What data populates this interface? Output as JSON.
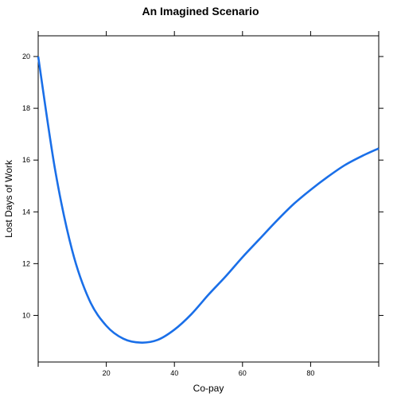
{
  "chart_data": {
    "type": "line",
    "title": "An Imagined Scenario",
    "xlabel": "Co-pay",
    "ylabel": "Lost Days of Work",
    "xlim": [
      0,
      100
    ],
    "ylim": [
      8.2,
      20.8
    ],
    "x_ticks": [
      20,
      40,
      60,
      80
    ],
    "y_ticks": [
      10,
      12,
      14,
      16,
      18,
      20
    ],
    "grid": false,
    "series": [
      {
        "color": "#1a6fe8",
        "x": [
          0,
          5,
          10,
          15,
          20,
          25,
          30,
          35,
          40,
          45,
          50,
          55,
          60,
          65,
          70,
          75,
          80,
          85,
          90,
          95,
          100
        ],
        "y": [
          20.0,
          15.6,
          12.5,
          10.6,
          9.6,
          9.1,
          8.95,
          9.05,
          9.45,
          10.05,
          10.8,
          11.5,
          12.25,
          12.95,
          13.65,
          14.3,
          14.85,
          15.35,
          15.8,
          16.15,
          16.45
        ]
      }
    ]
  }
}
